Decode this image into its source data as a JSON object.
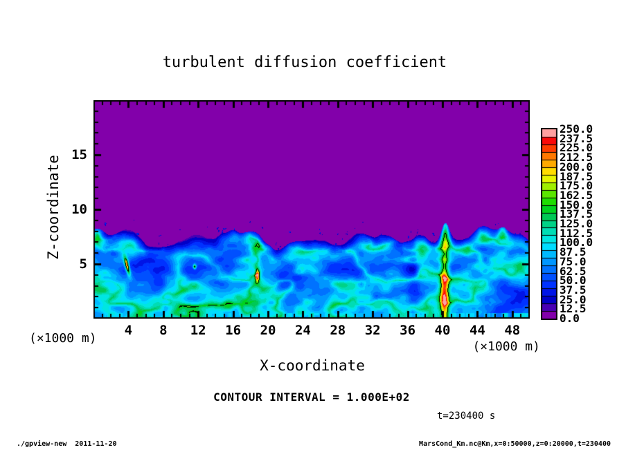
{
  "header": {
    "title": "turbulent diffusion coefficient"
  },
  "chart_data": {
    "type": "heatmap",
    "title": "turbulent diffusion coefficient",
    "xlabel": "X-coordinate",
    "ylabel": "Z-coordinate",
    "x_unit_label": "(×1000 m)",
    "y_unit_label": "(×1000 m)",
    "xlim": [
      0,
      50
    ],
    "ylim": [
      0,
      20
    ],
    "x_major_tick_step": 4,
    "x_minor_tick_step": 1,
    "y_major_tick_step": 5,
    "y_minor_tick_step": 1,
    "x_tick_labels": [
      "4",
      "8",
      "12",
      "16",
      "20",
      "24",
      "28",
      "32",
      "36",
      "40",
      "44",
      "48"
    ],
    "y_tick_labels": [
      "5",
      "10",
      "15"
    ],
    "contour_interval_label": "CONTOUR INTERVAL = 1.000E+02",
    "contour_interval_value": 100.0,
    "time_label": "t=230400 s",
    "colorbar": {
      "min": 0.0,
      "max": 250.0,
      "label_step": 12.5,
      "labels_top_to_bottom": [
        "250.0",
        "237.5",
        "225.0",
        "212.5",
        "200.0",
        "187.5",
        "175.0",
        "162.5",
        "150.0",
        "137.5",
        "125.0",
        "112.5",
        "100.0",
        "87.5",
        "75.0",
        "62.5",
        "50.0",
        "37.5",
        "25.0",
        "12.5",
        "0.0"
      ],
      "cell_colors_bottom_to_top": [
        "#8200AA",
        "#4800B4",
        "#0000C8",
        "#0014E6",
        "#0032FF",
        "#0050FF",
        "#0072FF",
        "#0096FF",
        "#00B9FF",
        "#00DCFF",
        "#00E6E1",
        "#00DCB4",
        "#00D287",
        "#00C855",
        "#00D21E",
        "#1EDC00",
        "#5AE600",
        "#A0EE00",
        "#E6F500",
        "#FFDC00",
        "#FFAA00",
        "#FF7800",
        "#FF3C00",
        "#FA0A0A",
        "#FFA0A0"
      ]
    },
    "field": {
      "description": "Quiescent low-diffusion (K<12.5, purple) region above a wavy convective boundary-layer top near z=7.5 km; turbulent blue/cyan eddies and swirls (K~25-125) below, with bright green plume cores (K>150) outlined by the K=150 contour.",
      "background_value": 5,
      "boundary_layer_height_km": 7.35,
      "plume_x_km": 40.25,
      "interface_dip_x_km": 30.5,
      "interface_bump_x_km": 46.9,
      "bright_cores": [
        {
          "x": 3.85,
          "z": 4.85
        },
        {
          "x": 11.6,
          "z": 4.75
        },
        {
          "x": 18.78,
          "z": 3.9
        },
        {
          "x": 40.25,
          "z": 2.4
        }
      ],
      "dark_eddy_cores": [
        {
          "x": 22.6,
          "z": 3.6
        },
        {
          "x": 30.6,
          "z": 2.6
        },
        {
          "x": 36.7,
          "z": 3.8
        },
        {
          "x": 44.9,
          "z": 5.0
        }
      ]
    }
  },
  "footer": {
    "left": "./gpview-new  2011-11-20",
    "right": "MarsCond_Km.nc@Km,x=0:50000,z=0:20000,t=230400"
  }
}
